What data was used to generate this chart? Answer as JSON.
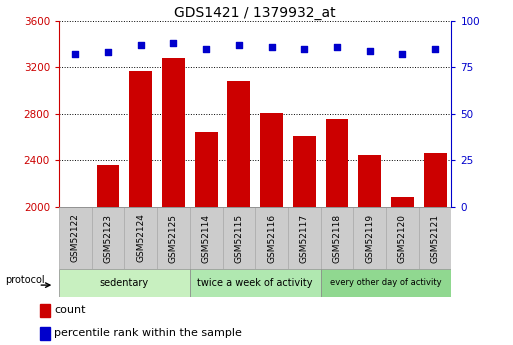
{
  "title": "GDS1421 / 1379932_at",
  "samples": [
    "GSM52122",
    "GSM52123",
    "GSM52124",
    "GSM52125",
    "GSM52114",
    "GSM52115",
    "GSM52116",
    "GSM52117",
    "GSM52118",
    "GSM52119",
    "GSM52120",
    "GSM52121"
  ],
  "counts": [
    2002,
    2360,
    3170,
    3280,
    2640,
    3080,
    2810,
    2610,
    2760,
    2450,
    2090,
    2460
  ],
  "percentile_ranks": [
    82,
    83,
    87,
    88,
    85,
    87,
    86,
    85,
    86,
    84,
    82,
    85
  ],
  "bar_color": "#cc0000",
  "dot_color": "#0000cc",
  "ylim_left": [
    2000,
    3600
  ],
  "ylim_right": [
    0,
    100
  ],
  "yticks_left": [
    2000,
    2400,
    2800,
    3200,
    3600
  ],
  "yticks_right": [
    0,
    25,
    50,
    75,
    100
  ],
  "groups": [
    {
      "label": "sedentary",
      "start": 0,
      "end": 3,
      "color": "#c8f0c0"
    },
    {
      "label": "twice a week of activity",
      "start": 4,
      "end": 7,
      "color": "#b0e8b0"
    },
    {
      "label": "every other day of activity",
      "start": 8,
      "end": 11,
      "color": "#90d890"
    }
  ],
  "protocol_label": "protocol",
  "legend_count_label": "count",
  "legend_percentile_label": "percentile rank within the sample",
  "tick_label_fontsize": 6.5,
  "title_fontsize": 10,
  "grid_color": "#000000",
  "left_axis_color": "#cc0000",
  "right_axis_color": "#0000cc",
  "bar_width": 0.7,
  "sample_bg_color": "#cccccc",
  "sample_border_color": "#aaaaaa"
}
